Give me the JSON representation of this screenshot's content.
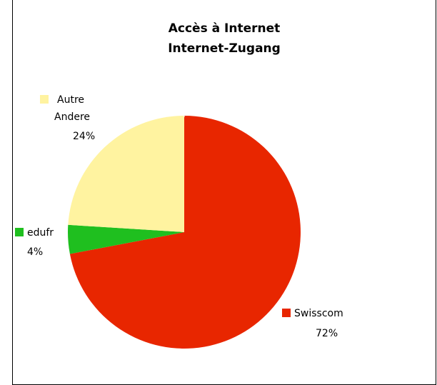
{
  "chart_data": {
    "type": "pie",
    "title": "Accès à Internet",
    "subtitle": "Internet-Zugang",
    "start_angle_deg": 0,
    "direction": "clockwise",
    "slices": [
      {
        "label": "Swisscom",
        "value": 72,
        "display": "72%",
        "color": "#e82600"
      },
      {
        "label": "edufr",
        "value": 4,
        "display": "4%",
        "color": "#1fbf1f"
      },
      {
        "label": "Autre\nAndere",
        "value": 24,
        "display": "24%",
        "color": "#fff3a0"
      }
    ]
  }
}
